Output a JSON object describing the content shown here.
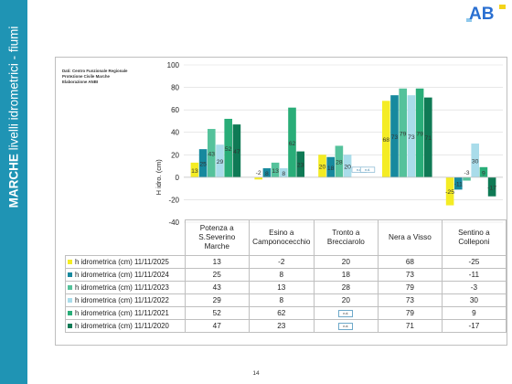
{
  "page": {
    "side_title_bold": "MARCHE",
    "side_title_rest": " livelli idrometrici - fiumi",
    "logo_text": "AB",
    "page_number": "14",
    "source_lines": [
      "Dati: Centro Funzionale Regionale",
      "Protezione Civile Marche",
      "Elaborazione ANBI"
    ]
  },
  "colors": {
    "sidebar": "#1f94b4",
    "logo_blue": "#2a6fd1",
    "logo_light": "#8ec8ec",
    "logo_yellow": "#f3d31a"
  },
  "chart_data": {
    "type": "bar",
    "ylabel": "H idro. (cm)",
    "ylim": [
      -40,
      100
    ],
    "yticks": [
      -40,
      -20,
      0,
      20,
      40,
      60,
      80,
      100
    ],
    "grid": true,
    "categories": [
      "Potenza a S.Severino Marche",
      "Esino a Camponocecchio",
      "Tronto a Brecciarolo",
      "Nera a Visso",
      "Sentino a Colleponi"
    ],
    "category_lines": [
      [
        "Potenza a",
        "S.Severino",
        "Marche"
      ],
      [
        "Esino a",
        "Camponocecchio"
      ],
      [
        "Tronto a",
        "Brecciarolo"
      ],
      [
        "Nera a Visso"
      ],
      [
        "Sentino a",
        "Colleponi"
      ]
    ],
    "na_label": "n.d.",
    "series": [
      {
        "name": "h idrometrica (cm) 11/11/2025",
        "color": "#f4ec24",
        "values": [
          13,
          -2,
          20,
          68,
          -25
        ]
      },
      {
        "name": "h idrometrica (cm) 11/11/2024",
        "color": "#17899e",
        "values": [
          25,
          8,
          18,
          73,
          -11
        ]
      },
      {
        "name": "h idrometrica (cm) 11/11/2023",
        "color": "#55c29b",
        "values": [
          43,
          13,
          28,
          79,
          -3
        ]
      },
      {
        "name": "h idrometrica (cm) 11/11/2022",
        "color": "#a9dcea",
        "values": [
          29,
          8,
          20,
          73,
          30
        ]
      },
      {
        "name": "h idrometrica (cm) 11/11/2021",
        "color": "#29ad78",
        "values": [
          52,
          62,
          null,
          79,
          9
        ]
      },
      {
        "name": "h idrometrica (cm) 11/11/2020",
        "color": "#0f7a55",
        "values": [
          47,
          23,
          null,
          71,
          -17
        ]
      }
    ]
  }
}
